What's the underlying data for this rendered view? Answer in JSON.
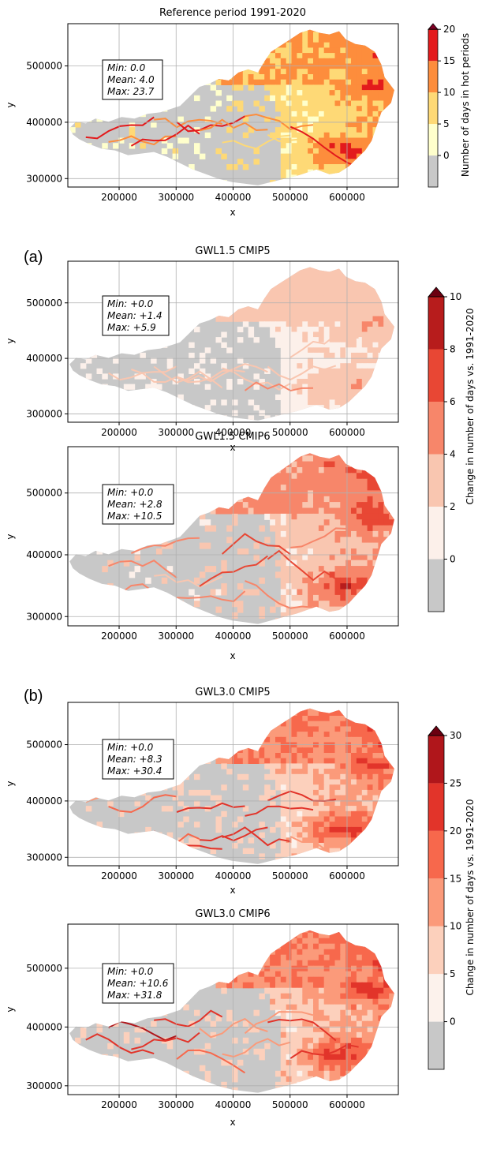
{
  "chart_data": [
    {
      "id": "ref",
      "type": "heatmap",
      "title": "Reference period 1991-2020",
      "panel_letter": "",
      "xlabel": "x",
      "ylabel": "y",
      "xlim": [
        110000,
        690000
      ],
      "ylim": [
        285000,
        575000
      ],
      "xticks": [
        200000,
        300000,
        400000,
        500000,
        600000
      ],
      "yticks": [
        300000,
        400000,
        500000
      ],
      "stats": {
        "min": "Min: 0.0",
        "mean": "Mean: 4.0",
        "max": "Max: 23.7"
      },
      "values": {
        "min": 0.0,
        "mean": 4.0,
        "max": 23.7
      },
      "palette": "ref"
    },
    {
      "id": "a1",
      "type": "heatmap",
      "title": "GWL1.5 CMIP5",
      "panel_letter": "(a)",
      "xlabel": "x",
      "ylabel": "y",
      "xlim": [
        110000,
        690000
      ],
      "ylim": [
        285000,
        575000
      ],
      "xticks": [
        200000,
        300000,
        400000,
        500000,
        600000
      ],
      "yticks": [
        300000,
        400000,
        500000
      ],
      "stats": {
        "min": "Min: +0.0",
        "mean": "Mean: +1.4",
        "max": "Max: +5.9"
      },
      "values": {
        "min": 0.0,
        "mean": 1.4,
        "max": 5.9
      },
      "palette": "a"
    },
    {
      "id": "a2",
      "type": "heatmap",
      "title": "GWL1.5 CMIP6",
      "panel_letter": "",
      "xlabel": "x",
      "ylabel": "y",
      "xlim": [
        110000,
        690000
      ],
      "ylim": [
        285000,
        575000
      ],
      "xticks": [
        200000,
        300000,
        400000,
        500000,
        600000
      ],
      "yticks": [
        300000,
        400000,
        500000
      ],
      "stats": {
        "min": "Min: +0.0",
        "mean": "Mean: +2.8",
        "max": "Max: +10.5"
      },
      "values": {
        "min": 0.0,
        "mean": 2.8,
        "max": 10.5
      },
      "palette": "a"
    },
    {
      "id": "b1",
      "type": "heatmap",
      "title": "GWL3.0 CMIP5",
      "panel_letter": "(b)",
      "xlabel": "x",
      "ylabel": "y",
      "xlim": [
        110000,
        690000
      ],
      "ylim": [
        285000,
        575000
      ],
      "xticks": [
        200000,
        300000,
        400000,
        500000,
        600000
      ],
      "yticks": [
        300000,
        400000,
        500000
      ],
      "stats": {
        "min": "Min: +0.0",
        "mean": "Mean: +8.3",
        "max": "Max: +30.4"
      },
      "values": {
        "min": 0.0,
        "mean": 8.3,
        "max": 30.4
      },
      "palette": "b"
    },
    {
      "id": "b2",
      "type": "heatmap",
      "title": "GWL3.0 CMIP6",
      "panel_letter": "",
      "xlabel": "x",
      "ylabel": "y",
      "xlim": [
        110000,
        690000
      ],
      "ylim": [
        285000,
        575000
      ],
      "xticks": [
        200000,
        300000,
        400000,
        500000,
        600000
      ],
      "yticks": [
        300000,
        400000,
        500000
      ],
      "stats": {
        "min": "Min: +0.0",
        "mean": "Mean: +10.6",
        "max": "Max: +31.8"
      },
      "values": {
        "min": 0.0,
        "mean": 10.6,
        "max": 31.8
      },
      "palette": "b"
    }
  ],
  "colorbars": {
    "ref": {
      "label": "Number of days in hot periods",
      "ticks": [
        0,
        5,
        10,
        15,
        20
      ],
      "bins": [
        {
          "from": -5,
          "to": 0,
          "color": "#c8c8c8"
        },
        {
          "from": 0,
          "to": 5,
          "color": "#ffffcc"
        },
        {
          "from": 5,
          "to": 10,
          "color": "#fed976"
        },
        {
          "from": 10,
          "to": 15,
          "color": "#fd8d3c"
        },
        {
          "from": 15,
          "to": 20,
          "color": "#e31a1c"
        }
      ],
      "extend_color": "#800026",
      "range": [
        -5,
        20
      ]
    },
    "a": {
      "label": "Change in number of days vs. 1991-2020",
      "ticks": [
        0,
        2,
        4,
        6,
        8,
        10
      ],
      "bins": [
        {
          "from": -2,
          "to": 0,
          "color": "#c8c8c8"
        },
        {
          "from": 0,
          "to": 2,
          "color": "#fcf0ea"
        },
        {
          "from": 2,
          "to": 4,
          "color": "#f9c6b0"
        },
        {
          "from": 4,
          "to": 6,
          "color": "#f7866a"
        },
        {
          "from": 6,
          "to": 8,
          "color": "#e84734"
        },
        {
          "from": 8,
          "to": 10,
          "color": "#b71c1c"
        }
      ],
      "extend_color": "#6b0010",
      "range": [
        -2,
        10
      ]
    },
    "b": {
      "label": "Change in number of days vs. 1991-2020",
      "ticks": [
        0,
        5,
        10,
        15,
        20,
        25,
        30
      ],
      "bins": [
        {
          "from": -5,
          "to": 0,
          "color": "#c8c8c8"
        },
        {
          "from": 0,
          "to": 5,
          "color": "#fcf2ec"
        },
        {
          "from": 5,
          "to": 10,
          "color": "#fcd0bc"
        },
        {
          "from": 10,
          "to": 15,
          "color": "#fb9a7a"
        },
        {
          "from": 15,
          "to": 20,
          "color": "#f7684c"
        },
        {
          "from": 20,
          "to": 25,
          "color": "#e2342a"
        },
        {
          "from": 25,
          "to": 30,
          "color": "#b0161b"
        }
      ],
      "extend_color": "#6b0010",
      "range": [
        -5,
        30
      ]
    }
  }
}
